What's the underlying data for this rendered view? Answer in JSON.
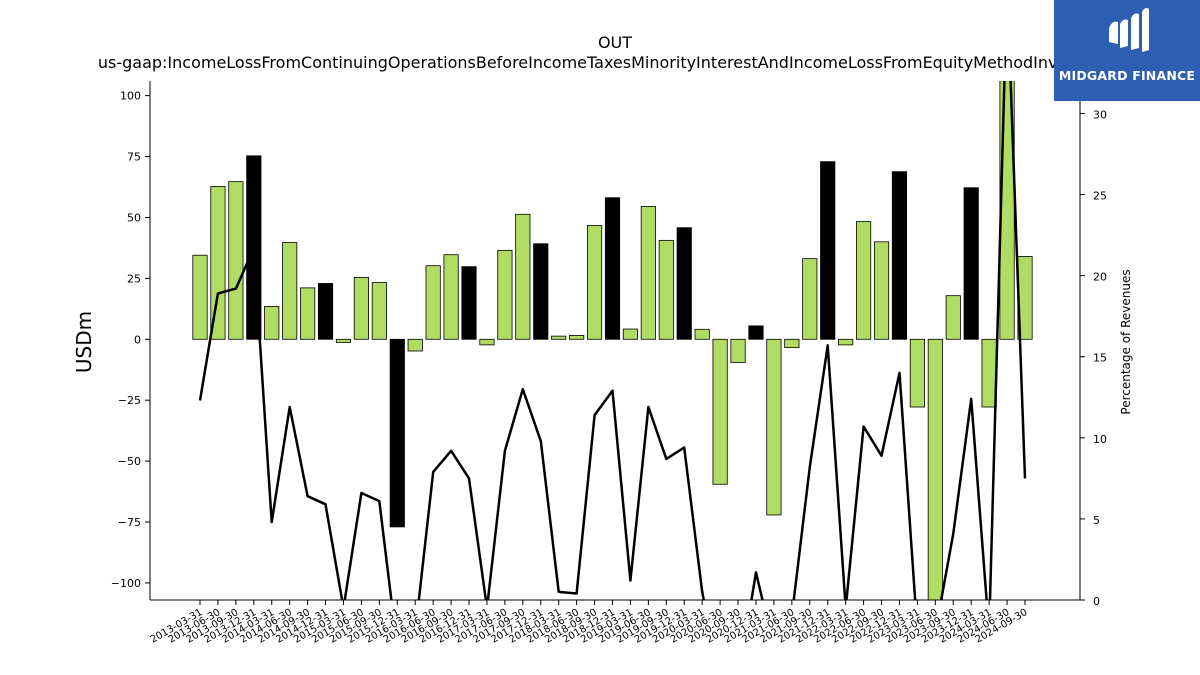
{
  "brand": {
    "name": "MIDGARD FINANCE",
    "color": "#2f5fb3",
    "icon": "midgard-logo-icon"
  },
  "chart_data": {
    "type": "bar",
    "title": "OUT",
    "subtitle": "us-gaap:IncomeLossFromContinuingOperationsBeforeIncomeTaxesMinorityInterestAndIncomeLossFromEquityMethodInvestments",
    "ylabel": "USDm",
    "y2label": "Percentage of Revenues",
    "ylim": [
      -107,
      106
    ],
    "y2lim": [
      0,
      32
    ],
    "yticks": [
      -100,
      -75,
      -50,
      -25,
      0,
      25,
      50,
      75,
      100
    ],
    "y2ticks": [
      0,
      5,
      10,
      15,
      20,
      25,
      30
    ],
    "grid": false,
    "colors": {
      "quarter": "#b0dc64",
      "year_end": "#000000",
      "line": "#000000"
    },
    "categories": [
      "2013-03-31",
      "2013-06-30",
      "2013-09-30",
      "2013-12-31",
      "2014-03-31",
      "2014-06-30",
      "2014-09-30",
      "2014-12-31",
      "2015-03-31",
      "2015-06-30",
      "2015-09-30",
      "2015-12-31",
      "2016-03-31",
      "2016-06-30",
      "2016-09-30",
      "2016-12-31",
      "2017-03-31",
      "2017-06-30",
      "2017-09-30",
      "2017-12-31",
      "2018-03-31",
      "2018-06-30",
      "2018-09-30",
      "2018-12-31",
      "2019-03-31",
      "2019-06-30",
      "2019-09-30",
      "2019-12-31",
      "2020-03-31",
      "2020-06-30",
      "2020-09-30",
      "2020-12-31",
      "2021-03-31",
      "2021-06-30",
      "2021-09-30",
      "2021-12-31",
      "2022-03-31",
      "2022-06-30",
      "2022-09-30",
      "2022-12-31",
      "2023-03-31",
      "2023-06-30",
      "2023-09-30",
      "2023-12-31",
      "2024-03-31",
      "2024-06-30",
      "2024-09-30"
    ],
    "series": [
      {
        "type": "bar",
        "axis": "left",
        "values": [
          34.5,
          62.7,
          64.7,
          75.3,
          13.5,
          39.7,
          21.1,
          22.9,
          -1.3,
          25.4,
          23.3,
          -77,
          -4.8,
          30.2,
          34.7,
          29.8,
          -2.3,
          36.5,
          51.3,
          39.2,
          1.3,
          1.6,
          46.7,
          58.1,
          4.2,
          54.5,
          40.6,
          45.8,
          4.1,
          -59.5,
          -9.5,
          5.5,
          -72.1,
          -3.4,
          33.1,
          72.9,
          -2.3,
          48.3,
          40,
          68.8,
          -27.8,
          -110,
          17.9,
          62.2,
          -27.8,
          110,
          34
        ]
      },
      {
        "type": "line",
        "axis": "right",
        "values": [
          12.3,
          18.9,
          19.2,
          21.7,
          4.8,
          11.9,
          6.4,
          5.9,
          -0.5,
          6.6,
          6.1,
          -3,
          -2,
          7.9,
          9.2,
          7.5,
          -0.5,
          9.2,
          13,
          9.8,
          0.5,
          0.4,
          11.4,
          12.9,
          1.2,
          11.9,
          8.7,
          9.4,
          0.5,
          -5,
          -5,
          1.7,
          -3,
          -1,
          8.2,
          15.7,
          -0.5,
          10.7,
          8.9,
          14,
          -2,
          -2,
          4.1,
          12.4,
          -2,
          38,
          7.5
        ]
      }
    ]
  }
}
